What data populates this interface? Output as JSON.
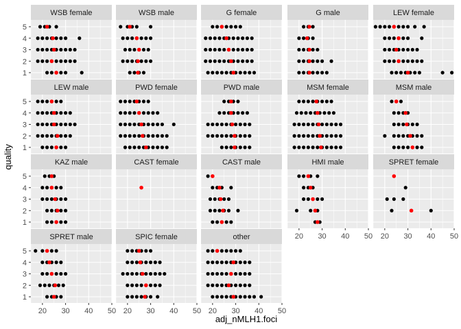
{
  "chart_data": {
    "type": "scatter",
    "facet_by": "group",
    "xlabel": "adj_nMLH1.foci",
    "ylabel": "quality",
    "xlim": [
      15,
      50
    ],
    "x_ticks": [
      20,
      30,
      40,
      50
    ],
    "y_categories": [
      "1",
      "2",
      "3",
      "4",
      "5"
    ],
    "grid": true,
    "colors": {
      "panel_bg": "#EBEBEB",
      "strip_bg": "#D9D9D9",
      "grid_major": "#FFFFFF",
      "point": "#000000",
      "mean_point": "#FF0000"
    },
    "panels": [
      {
        "label": "WSB female",
        "points": {
          "5": [
            19,
            21,
            23,
            26
          ],
          "4": [
            18,
            20,
            22,
            24,
            26,
            28,
            30,
            36
          ],
          "3": [
            18,
            20,
            22,
            24,
            26,
            28,
            30,
            32,
            34
          ],
          "2": [
            18,
            20,
            22,
            24,
            26,
            28,
            30,
            32,
            34
          ],
          "1": [
            22,
            24,
            26,
            28,
            30,
            37
          ]
        },
        "means": {
          "5": 22,
          "4": 24.5,
          "3": 25,
          "2": 24,
          "1": 26
        }
      },
      {
        "label": "WSB male",
        "points": {
          "5": [
            17,
            20,
            22,
            24,
            30
          ],
          "4": [
            18,
            20,
            22,
            24,
            26,
            28,
            30
          ],
          "3": [
            19,
            21,
            23,
            25,
            27,
            29
          ],
          "2": [
            18,
            20,
            22,
            24,
            26,
            28,
            30
          ],
          "1": [
            21,
            23,
            25,
            27
          ]
        },
        "means": {
          "5": 21,
          "4": 24,
          "3": 25,
          "2": 24.5,
          "1": 24.5
        }
      },
      {
        "label": "G female",
        "points": {
          "5": [
            20,
            22,
            24,
            26,
            28,
            30,
            32
          ],
          "4": [
            17,
            19,
            21,
            23,
            25,
            27,
            29,
            31,
            33,
            35,
            37
          ],
          "3": [
            17,
            19,
            21,
            23,
            25,
            27,
            29,
            31,
            33,
            35,
            37
          ],
          "2": [
            17,
            19,
            21,
            23,
            25,
            27,
            29,
            31,
            33,
            35,
            37
          ],
          "1": [
            18,
            20,
            22,
            24,
            26,
            28,
            30,
            32,
            34,
            36,
            38
          ]
        },
        "means": {
          "5": 24,
          "4": 26,
          "3": 27,
          "2": 28,
          "1": 29
        }
      },
      {
        "label": "G male",
        "points": {
          "5": [
            22,
            24,
            26
          ],
          "4": [
            20,
            22,
            24,
            26
          ],
          "3": [
            20,
            22,
            24,
            26,
            28
          ],
          "2": [
            20,
            22,
            24,
            26,
            28,
            30,
            34
          ],
          "1": [
            20,
            22,
            24,
            26,
            28,
            30,
            32
          ]
        },
        "means": {
          "5": 24.5,
          "4": 23.5,
          "3": 24.5,
          "2": 24.5,
          "1": 24.5
        }
      },
      {
        "label": "LEW female",
        "points": {
          "5": [
            16,
            18,
            20,
            22,
            24,
            26,
            28,
            30,
            33,
            37
          ],
          "4": [
            20,
            22,
            24,
            26,
            28,
            30,
            36
          ],
          "3": [
            20,
            22,
            24,
            26,
            28,
            30,
            32,
            34
          ],
          "2": [
            20,
            22,
            24,
            26,
            28,
            30,
            32,
            34,
            36
          ],
          "1": [
            23,
            25,
            27,
            29,
            31,
            33,
            35,
            45,
            49
          ]
        },
        "means": {
          "5": 24,
          "4": 26,
          "3": 25,
          "2": 26,
          "1": 30
        }
      },
      {
        "label": "LEW male",
        "points": {
          "5": [
            18,
            20,
            22,
            24,
            26,
            28
          ],
          "4": [
            18,
            20,
            22,
            24,
            26,
            28,
            30,
            32
          ],
          "3": [
            18,
            20,
            22,
            24,
            26,
            28,
            30,
            32,
            34
          ],
          "2": [
            18,
            20,
            22,
            24,
            26,
            28,
            30,
            32
          ],
          "1": [
            20,
            22,
            24,
            26,
            28,
            30
          ]
        },
        "means": {
          "5": 24,
          "4": 25,
          "3": 25,
          "2": 26.5,
          "1": 26
        }
      },
      {
        "label": "PWD female",
        "points": {
          "5": [
            17,
            19,
            21,
            23,
            25,
            27,
            29
          ],
          "4": [
            17,
            19,
            21,
            23,
            25,
            27,
            29,
            31,
            33
          ],
          "3": [
            17,
            19,
            21,
            23,
            25,
            27,
            29,
            31,
            33,
            35,
            40
          ],
          "2": [
            17,
            19,
            21,
            23,
            25,
            27,
            29,
            31,
            33,
            35,
            37
          ],
          "1": [
            19,
            21,
            23,
            25,
            27,
            29,
            31,
            33,
            35,
            37
          ]
        },
        "means": {
          "5": 24,
          "4": 25,
          "3": 26,
          "2": 26.5,
          "1": 28
        }
      },
      {
        "label": "PWD male",
        "points": {
          "5": [
            25,
            27,
            29,
            31
          ],
          "4": [
            23,
            25,
            27,
            29,
            31,
            33,
            35
          ],
          "3": [
            18,
            20,
            22,
            24,
            26,
            28,
            30,
            32,
            34,
            36
          ],
          "2": [
            18,
            20,
            22,
            24,
            26,
            28,
            30,
            32,
            34,
            36
          ],
          "1": [
            24,
            26,
            28,
            30,
            32,
            34,
            36
          ]
        },
        "means": {
          "5": 28,
          "4": 28,
          "3": 28.5,
          "2": 29.5,
          "1": 29.5
        }
      },
      {
        "label": "MSM female",
        "points": {
          "5": [
            20,
            22,
            24,
            26,
            28,
            30,
            32,
            34
          ],
          "4": [
            19,
            21,
            23,
            25,
            27,
            29,
            31,
            33,
            35
          ],
          "3": [
            18,
            20,
            22,
            24,
            26,
            28,
            30,
            32,
            34,
            36,
            38
          ],
          "2": [
            18,
            20,
            22,
            24,
            26,
            28,
            30,
            32,
            34,
            36,
            38
          ],
          "1": [
            18,
            20,
            22,
            24,
            26,
            28,
            30,
            32,
            34,
            36,
            38
          ]
        },
        "means": {
          "5": 27.5,
          "4": 28,
          "3": 28.5,
          "2": 29,
          "1": 29.5
        }
      },
      {
        "label": "MSM male",
        "points": {
          "5": [
            23,
            25,
            27
          ],
          "4": [
            24,
            26,
            28,
            30
          ],
          "3": [
            24,
            26,
            28,
            30,
            32,
            34
          ],
          "2": [
            20,
            24,
            26,
            28,
            30,
            32,
            34,
            36
          ],
          "1": [
            24,
            26,
            28,
            30,
            32,
            34,
            36
          ]
        },
        "means": {
          "5": 25,
          "4": 29,
          "3": 29.5,
          "2": 31,
          "1": 32
        }
      },
      {
        "label": "KAZ male",
        "points": {
          "5": [
            21,
            23,
            25
          ],
          "4": [
            20,
            22,
            24,
            26,
            28
          ],
          "3": [
            20,
            22,
            24,
            26,
            28,
            30
          ],
          "2": [
            22,
            24,
            26,
            28,
            30
          ],
          "1": [
            22,
            24,
            26,
            28,
            30
          ]
        },
        "means": {
          "5": 24,
          "4": 24,
          "3": 25.5,
          "2": 26.5,
          "1": 26
        }
      },
      {
        "label": "CAST female",
        "points": {
          "5": [],
          "4": [],
          "3": [],
          "2": [],
          "1": []
        },
        "means": {
          "4": 26
        }
      },
      {
        "label": "CAST male",
        "points": {
          "5": [
            18,
            20
          ],
          "4": [
            20,
            22,
            24,
            28
          ],
          "3": [
            19,
            21,
            23,
            25,
            27
          ],
          "2": [
            19,
            21,
            23,
            25,
            27,
            31
          ],
          "1": [
            20,
            22,
            24,
            26,
            28
          ]
        },
        "means": {
          "5": 20,
          "4": 23,
          "3": 23.5,
          "2": 24.5,
          "1": 24
        }
      },
      {
        "label": "HMI male",
        "points": {
          "5": [
            20,
            22,
            25,
            28
          ],
          "4": [
            22,
            24,
            26
          ],
          "3": [
            22,
            24,
            26,
            28,
            30
          ],
          "2": [
            19,
            25,
            27,
            28
          ],
          "1": [
            27,
            29
          ]
        },
        "means": {
          "5": 24,
          "4": 25,
          "3": 26,
          "2": 27,
          "1": 28
        }
      },
      {
        "label": "SPRET female",
        "points": {
          "5": [],
          "4": [
            29
          ],
          "3": [
            21,
            24,
            28
          ],
          "2": [
            23,
            40
          ],
          "1": []
        },
        "means": {
          "5": 24,
          "2": 31.5
        }
      },
      {
        "label": "SPRET male",
        "points": {
          "5": [
            17,
            20,
            24,
            26
          ],
          "4": [
            20,
            22,
            24,
            26,
            28
          ],
          "3": [
            20,
            22,
            24,
            26,
            28,
            30
          ],
          "2": [
            19,
            21,
            23,
            25,
            27,
            29
          ],
          "1": [
            22,
            24,
            26,
            28
          ]
        },
        "means": {
          "5": 22,
          "4": 23,
          "3": 24,
          "2": 25.5,
          "1": 25
        }
      },
      {
        "label": "SPIC female",
        "points": {
          "5": [
            20,
            22,
            24,
            26,
            28,
            30
          ],
          "4": [
            20,
            22,
            24,
            26,
            28,
            30,
            32,
            34
          ],
          "3": [
            18,
            20,
            22,
            24,
            26,
            28,
            30,
            32,
            34,
            36
          ],
          "2": [
            20,
            22,
            24,
            26,
            28,
            30,
            32,
            34
          ],
          "1": [
            20,
            22,
            24,
            26,
            28,
            30,
            33
          ]
        },
        "means": {
          "5": 25,
          "4": 25.5,
          "3": 26.5,
          "2": 28,
          "1": 27.5
        }
      },
      {
        "label": "other",
        "points": {
          "5": [
            18,
            20,
            22,
            24,
            26,
            28,
            30,
            32
          ],
          "4": [
            18,
            20,
            22,
            24,
            26,
            28,
            30,
            32,
            34,
            36
          ],
          "3": [
            18,
            20,
            22,
            24,
            26,
            28,
            30,
            32,
            34,
            36
          ],
          "2": [
            18,
            20,
            22,
            24,
            26,
            28,
            30,
            32,
            34,
            36
          ],
          "1": [
            20,
            22,
            24,
            26,
            28,
            30,
            32,
            34,
            36,
            38,
            41
          ]
        },
        "means": {
          "5": 22,
          "4": 29,
          "3": 28,
          "2": 27,
          "1": 29
        }
      }
    ]
  }
}
